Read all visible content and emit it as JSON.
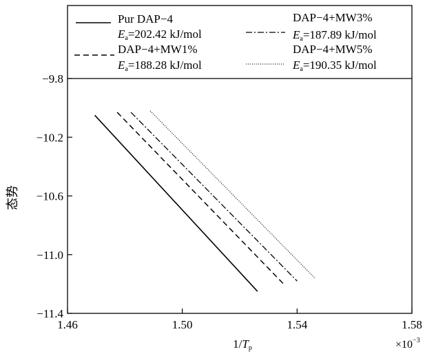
{
  "chart_data": {
    "type": "line",
    "xlabel": "1/",
    "xlabel_italic": "T",
    "xlabel_sub": "p",
    "x_multiplier_base": "×10",
    "x_multiplier_exp": "−3",
    "ylabel": "态势",
    "xlim": [
      1.46,
      1.58
    ],
    "ylim": [
      -11.4,
      -9.8
    ],
    "x_ticks": [
      1.46,
      1.5,
      1.54,
      1.58
    ],
    "x_tick_labels": [
      "1.46",
      "1.50",
      "1.54",
      "1.58"
    ],
    "y_ticks": [
      -9.8,
      -10.2,
      -10.6,
      -11.0,
      -11.4
    ],
    "y_tick_labels": [
      "−9.8",
      "−10.2",
      "−10.6",
      "−11.0",
      "−11.4"
    ],
    "grid": false,
    "legend_position": "top",
    "series": [
      {
        "name": "Pur DAP−4",
        "ea_label": "=202.42 kJ/mol",
        "dash": "solid",
        "x": [
          1.4695,
          1.5262
        ],
        "y": [
          -10.05,
          -11.25
        ]
      },
      {
        "name": "DAP−4+MW1%",
        "ea_label": "=188.28 kJ/mol",
        "dash": "dash",
        "x": [
          1.4773,
          1.5353
        ],
        "y": [
          -10.03,
          -11.2
        ]
      },
      {
        "name": "DAP−4+MW3%",
        "ea_label": "=187.89 kJ/mol",
        "dash": "dashdot",
        "x": [
          1.4821,
          1.54
        ],
        "y": [
          -10.03,
          -11.18
        ]
      },
      {
        "name": "DAP−4+MW5%",
        "ea_label": "=190.35 kJ/mol",
        "dash": "dotted",
        "x": [
          1.4888,
          1.5462
        ],
        "y": [
          -10.02,
          -11.16
        ]
      }
    ]
  }
}
